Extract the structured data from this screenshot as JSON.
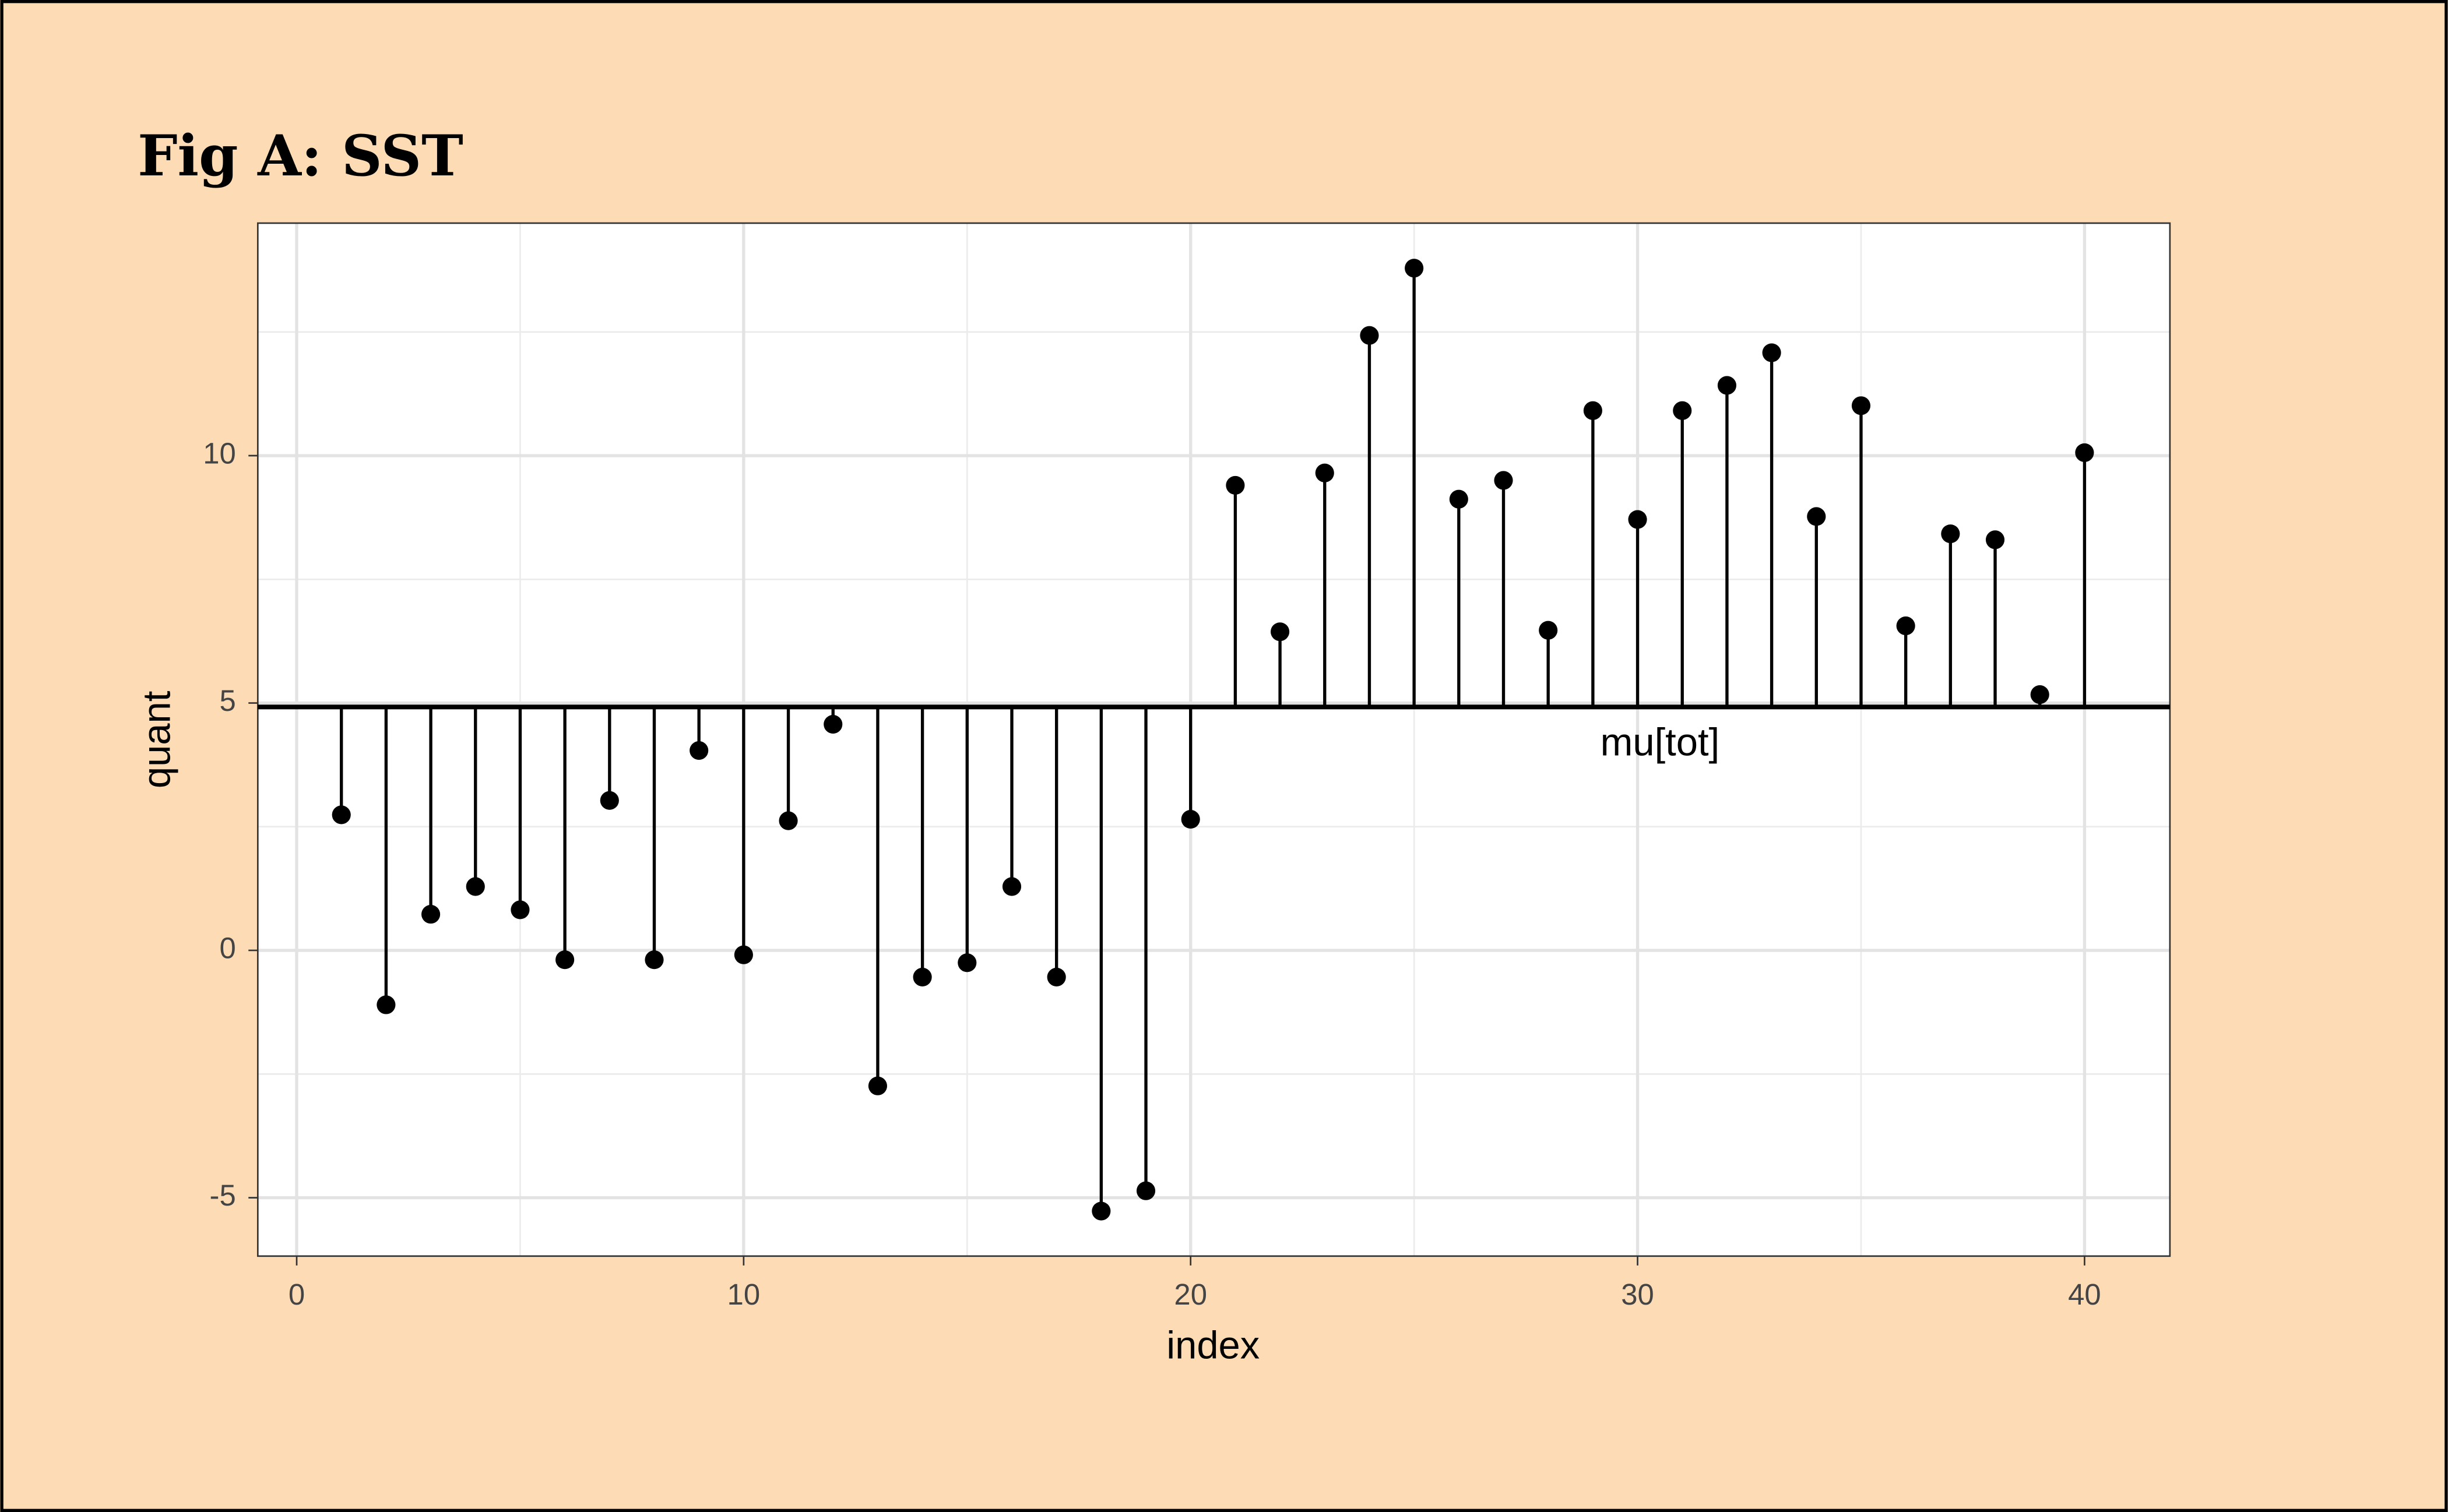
{
  "chart_data": {
    "type": "lollipop",
    "title": "Fig A: SST",
    "x_label": "index",
    "y_label": "quant",
    "x": [
      1,
      2,
      3,
      4,
      5,
      6,
      7,
      8,
      9,
      10,
      11,
      12,
      13,
      14,
      15,
      16,
      17,
      18,
      19,
      20,
      21,
      22,
      23,
      24,
      25,
      26,
      27,
      28,
      29,
      30,
      31,
      32,
      33,
      34,
      35,
      36,
      37,
      38,
      39,
      40
    ],
    "values": [
      2.74,
      -1.1,
      0.73,
      1.29,
      0.82,
      -0.19,
      3.03,
      -0.19,
      4.04,
      -0.09,
      2.62,
      4.57,
      -2.74,
      -0.54,
      -0.25,
      1.29,
      -0.54,
      -5.27,
      -4.86,
      2.65,
      9.4,
      6.44,
      9.65,
      12.43,
      13.79,
      9.12,
      9.5,
      6.47,
      10.91,
      8.71,
      10.91,
      11.42,
      12.08,
      8.77,
      11.01,
      6.56,
      8.42,
      8.3,
      5.17,
      10.06
    ],
    "color": "#000000",
    "baseline": 4.92,
    "annotation": {
      "text": "mu[tot]",
      "x": 30.5,
      "y": 4.15
    },
    "xlim": [
      -0.87,
      41.91
    ],
    "ylim": [
      -6.18,
      14.7
    ],
    "xticks": [
      0,
      10,
      20,
      30,
      40
    ],
    "yticks": [
      -5,
      0,
      5,
      10
    ],
    "minor_xticks": [
      5,
      15,
      25,
      35
    ],
    "minor_yticks": [
      -2.5,
      2.5,
      7.5,
      12.5
    ],
    "grid": true
  }
}
